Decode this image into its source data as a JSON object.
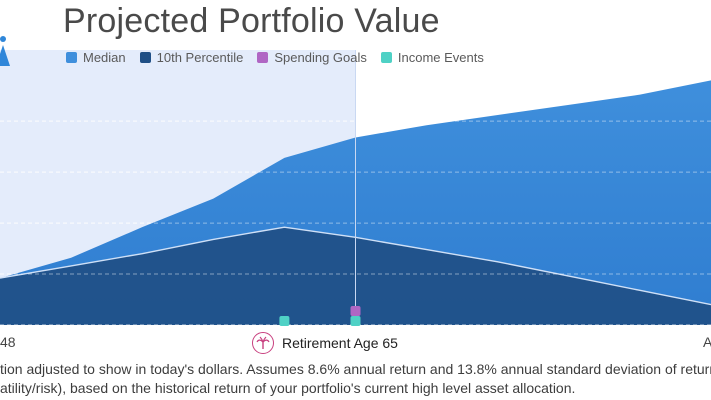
{
  "title": "Projected Portfolio Value",
  "legend": [
    {
      "label": "Median",
      "color": "#3f8fdc"
    },
    {
      "label": "10th Percentile",
      "color": "#1f4f86"
    },
    {
      "label": "Spending Goals",
      "color": "#b066c4"
    },
    {
      "label": "Income Events",
      "color": "#4fd1c5"
    }
  ],
  "axis": {
    "start_label": "48",
    "end_label": "A"
  },
  "retirement_marker": {
    "label": "Retirement Age 65",
    "icon": "palm-tree-icon"
  },
  "footnote": {
    "line1": "tion adjusted to show in today's dollars. Assumes 8.6% annual return and 13.8% annual standard deviation of return",
    "line2": "atility/risk), based on the historical return of your portfolio's current high level asset allocation."
  },
  "chart_data": {
    "type": "area",
    "title": "Projected Portfolio Value",
    "x": [
      0,
      1,
      2,
      3,
      4,
      5,
      6,
      7,
      8,
      9,
      10
    ],
    "series": [
      {
        "name": "Median",
        "values": [
          23,
          33,
          48,
          62,
          82,
          92,
          98,
          103,
          108,
          113,
          120
        ]
      },
      {
        "name": "10th Percentile",
        "values": [
          23,
          29,
          35,
          42,
          48,
          43,
          37,
          31,
          24,
          17,
          10
        ]
      }
    ],
    "spending_goals": [
      {
        "x": 5,
        "value": 1
      }
    ],
    "income_events": [
      {
        "x": 4,
        "value": 1
      },
      {
        "x": 5,
        "value": 1
      }
    ],
    "ylim": [
      0,
      130
    ],
    "grid": true,
    "highlight_region": "pre-retirement",
    "legend_position": "top"
  }
}
